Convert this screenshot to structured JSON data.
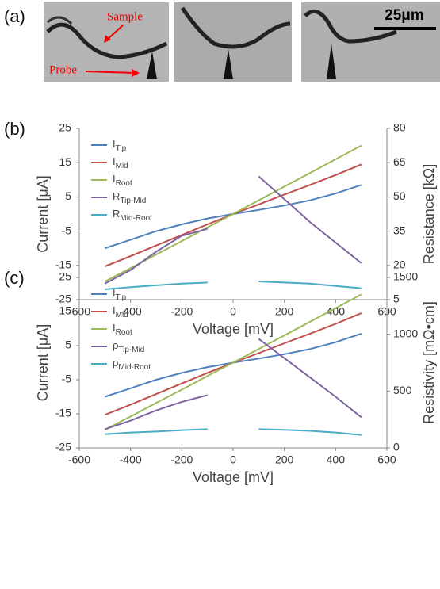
{
  "panel_a": {
    "label": "(a)",
    "annotations": [
      "Sample",
      "Probe"
    ],
    "scale_bar": "25μm"
  },
  "chart_data": [
    {
      "type": "line",
      "panel_label": "(b)",
      "xlabel": "Voltage [mV]",
      "ylabel": "Current [μA]",
      "y2label": "Resistance [kΩ]",
      "x": [
        -500,
        -400,
        -300,
        -200,
        -100,
        0,
        100,
        200,
        300,
        400,
        500
      ],
      "xlim": [
        -600,
        600
      ],
      "xticks": [
        -600,
        -400,
        -200,
        0,
        200,
        400,
        600
      ],
      "ylim": [
        -25,
        25
      ],
      "yticks": [
        -25,
        -15,
        -5,
        5,
        15,
        25
      ],
      "y2lim": [
        5,
        80
      ],
      "y2ticks": [
        5,
        20,
        35,
        50,
        65,
        80
      ],
      "legend": "upper left",
      "series": [
        {
          "name": "I",
          "subscript": "Tip",
          "color": "#4f81bd",
          "values": [
            -10,
            -7.5,
            -5,
            -3,
            -1.3,
            0,
            1.2,
            2.5,
            4,
            6,
            8.5
          ]
        },
        {
          "name": "I",
          "subscript": "Mid",
          "color": "#c0504d",
          "values": [
            -15.3,
            -12.3,
            -9.2,
            -6.1,
            -3,
            0,
            2.8,
            5.7,
            8.5,
            11.4,
            14.5
          ]
        },
        {
          "name": "I",
          "subscript": "Root",
          "color": "#9bbb59",
          "values": [
            -19.7,
            -15.8,
            -11.8,
            -7.9,
            -3.9,
            0,
            4,
            8,
            12,
            16,
            20
          ]
        },
        {
          "name": "R",
          "subscript": "Tip-Mid",
          "color": "#8064a2",
          "axis": "y2",
          "values": [
            12,
            18,
            26,
            33,
            36,
            null,
            59,
            49,
            39,
            30,
            21
          ]
        },
        {
          "name": "R",
          "subscript": "Mid-Root",
          "color": "#4bacc6",
          "axis": "y2",
          "values": [
            9.5,
            10.5,
            11.3,
            12,
            12.5,
            null,
            13,
            12.5,
            12,
            11,
            10
          ]
        }
      ]
    },
    {
      "type": "line",
      "panel_label": "(c)",
      "xlabel": "Voltage [mV]",
      "ylabel": "Current [μA]",
      "y2label": "Resistivity [mΩ•cm]",
      "x": [
        -500,
        -400,
        -300,
        -200,
        -100,
        0,
        100,
        200,
        300,
        400,
        500
      ],
      "xlim": [
        -600,
        600
      ],
      "xticks": [
        -600,
        -400,
        -200,
        0,
        200,
        400,
        600
      ],
      "ylim": [
        -25,
        25
      ],
      "yticks": [
        -25,
        -15,
        -5,
        5,
        15,
        25
      ],
      "y2lim": [
        0,
        1500
      ],
      "y2ticks": [
        0,
        500,
        1000,
        1500
      ],
      "legend": "upper left",
      "series": [
        {
          "name": "I",
          "subscript": "Tip",
          "color": "#4f81bd",
          "values": [
            -10,
            -7.5,
            -5,
            -3,
            -1.3,
            0,
            1.2,
            2.5,
            4,
            6,
            8.5
          ]
        },
        {
          "name": "I",
          "subscript": "Mid",
          "color": "#c0504d",
          "values": [
            -15.3,
            -12.3,
            -9.2,
            -6.1,
            -3,
            0,
            2.8,
            5.7,
            8.5,
            11.4,
            14.5
          ]
        },
        {
          "name": "I",
          "subscript": "Root",
          "color": "#9bbb59",
          "values": [
            -19.7,
            -15.8,
            -11.8,
            -7.9,
            -3.9,
            0,
            4,
            8,
            12,
            16,
            20
          ]
        },
        {
          "name": "ρ",
          "subscript": "Tip-Mid",
          "color": "#8064a2",
          "axis": "y2",
          "values": [
            165,
            240,
            330,
            405,
            465,
            null,
            960,
            790,
            620,
            450,
            270
          ]
        },
        {
          "name": "ρ",
          "subscript": "Mid-Root",
          "color": "#4bacc6",
          "axis": "y2",
          "values": [
            120,
            135,
            144,
            156,
            165,
            null,
            165,
            159,
            150,
            135,
            114
          ]
        }
      ]
    }
  ]
}
